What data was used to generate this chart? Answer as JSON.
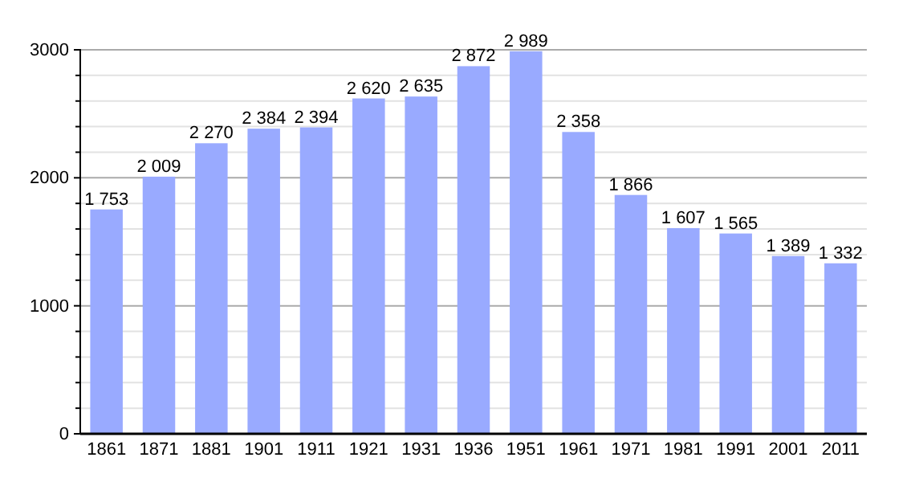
{
  "chart_data": {
    "type": "bar",
    "categories": [
      "1861",
      "1871",
      "1881",
      "1901",
      "1911",
      "1921",
      "1931",
      "1936",
      "1951",
      "1961",
      "1971",
      "1981",
      "1991",
      "2001",
      "2011"
    ],
    "values": [
      1753,
      2009,
      2270,
      2384,
      2394,
      2620,
      2635,
      2872,
      2989,
      2358,
      1866,
      1607,
      1565,
      1389,
      1332
    ],
    "value_labels": [
      "1 753",
      "2 009",
      "2 270",
      "2 384",
      "2 394",
      "2 620",
      "2 635",
      "2 872",
      "2 989",
      "2 358",
      "1 866",
      "1 607",
      "1 565",
      "1 389",
      "1 332"
    ],
    "color": "#99aaff",
    "ylim": [
      0,
      3000
    ],
    "yticks": [
      0,
      {
        "value": 200,
        "label": null
      },
      {
        "value": 400,
        "label": null
      },
      {
        "value": 600,
        "label": null
      },
      {
        "value": 800,
        "label": null
      },
      1000,
      {
        "value": 1200,
        "label": null
      },
      {
        "value": 1400,
        "label": null
      },
      {
        "value": 1600,
        "label": null
      },
      {
        "value": 1800,
        "label": null
      },
      2000,
      {
        "value": 2200,
        "label": null
      },
      {
        "value": 2400,
        "label": null
      },
      {
        "value": 2600,
        "label": null
      },
      {
        "value": 2800,
        "label": null
      },
      3000
    ],
    "grid": "y"
  }
}
